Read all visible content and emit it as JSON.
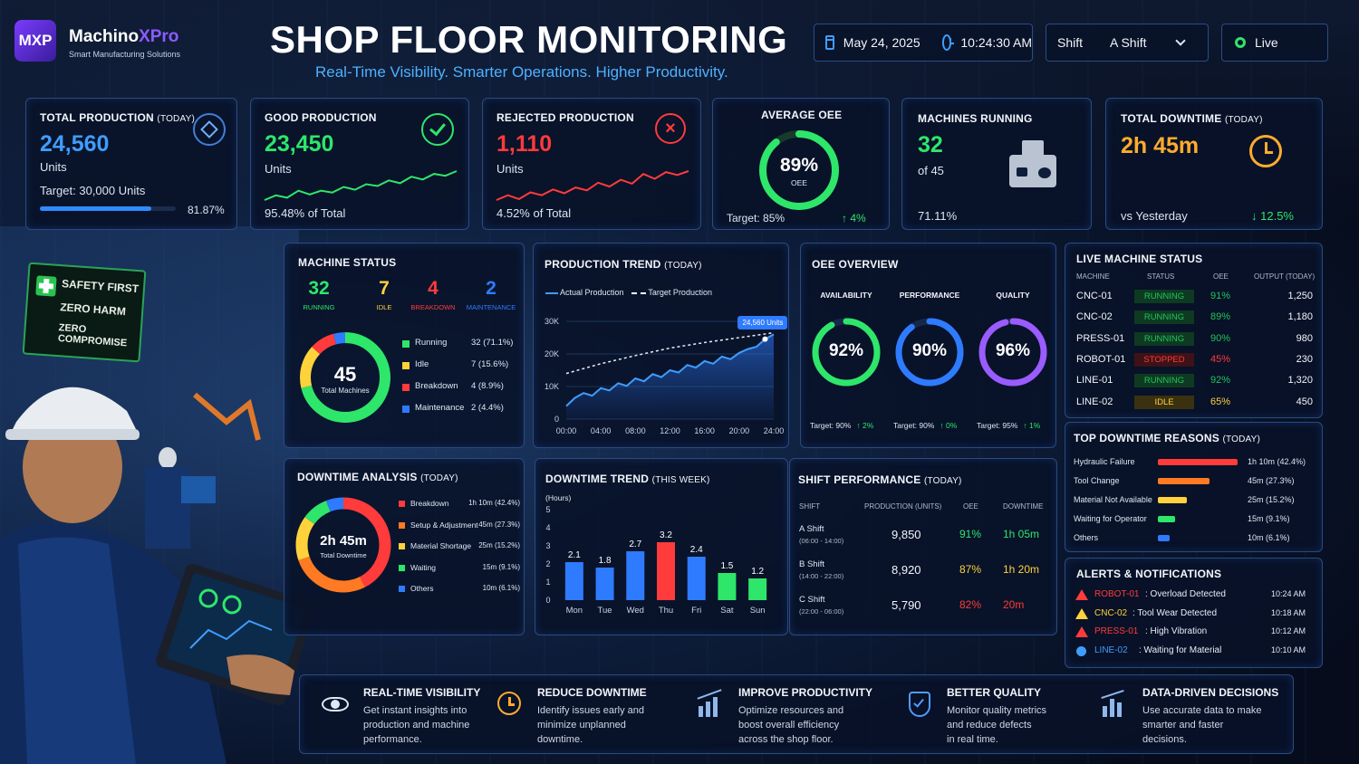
{
  "brand": {
    "logo_text": "MXP",
    "name_part1": "Machino",
    "name_part2": "XPro",
    "tagline": "Smart Manufacturing Solutions"
  },
  "header": {
    "title": "SHOP FLOOR MONITORING",
    "subtitle": "Real-Time Visibility. Smarter Operations. Higher Productivity.",
    "date": "May 24, 2025",
    "time": "10:24:30 AM",
    "shift_label": "Shift",
    "shift_value": "A Shift",
    "live_label": "Live"
  },
  "colors": {
    "accent": "#3f9dff",
    "good": "#2ee66a",
    "bad": "#ff3b3b",
    "idle": "#ffd23c",
    "maintenance": "#2f7bff",
    "quality": "#9a5bff"
  },
  "kpis": {
    "total": {
      "title": "TOTAL PRODUCTION",
      "title_suffix": "(TODAY)",
      "value": "24,560",
      "unit": "Units",
      "target": "Target: 30,000 Units",
      "pct": "81.87%",
      "progress": 0.8187
    },
    "good": {
      "title": "GOOD PRODUCTION",
      "value": "23,450",
      "unit": "Units",
      "footer": "95.48% of Total",
      "spark": [
        3,
        4,
        3.5,
        5,
        4.2,
        5,
        4.6,
        5.8,
        5.2,
        6.4,
        6,
        7.2,
        6.6,
        8,
        7.4,
        8.6,
        8.2,
        9.2
      ]
    },
    "rejected": {
      "title": "REJECTED PRODUCTION",
      "value": "1,110",
      "unit": "Units",
      "footer": "4.52% of Total",
      "spark": [
        3,
        4,
        3.2,
        4.6,
        4,
        5.2,
        4.4,
        5.6,
        5,
        6.6,
        5.8,
        7.2,
        6.4,
        8.4,
        7.4,
        8.8,
        8.2,
        9
      ]
    },
    "oee": {
      "title": "AVERAGE OEE",
      "value": "89%",
      "label": "OEE",
      "target": "Target: 85%",
      "delta": "4%",
      "fraction": 0.89
    },
    "machines": {
      "title": "MACHINES RUNNING",
      "value": "32",
      "of": "of 45",
      "pct": "71.11%"
    },
    "downtime": {
      "title": "TOTAL DOWNTIME",
      "title_suffix": "(TODAY)",
      "value": "2h 45m",
      "vs": "vs Yesterday",
      "delta": "12.5%"
    }
  },
  "machine_status": {
    "title": "MACHINE STATUS",
    "counts": [
      {
        "value": "32",
        "label": "RUNNING"
      },
      {
        "value": "7",
        "label": "IDLE"
      },
      {
        "value": "4",
        "label": "BREAKDOWN"
      },
      {
        "value": "2",
        "label": "MAINTENANCE"
      }
    ],
    "center_value": "45",
    "center_label": "Total Machines",
    "legend": [
      {
        "name": "Running",
        "value": "32 (71.1%)",
        "fraction": 0.711
      },
      {
        "name": "Idle",
        "value": "7 (15.6%)",
        "fraction": 0.156
      },
      {
        "name": "Breakdown",
        "value": "4 (8.9%)",
        "fraction": 0.089
      },
      {
        "name": "Maintenance",
        "value": "2 (4.4%)",
        "fraction": 0.044
      }
    ]
  },
  "production_trend": {
    "title": "PRODUCTION TREND",
    "title_suffix": "(TODAY)",
    "legend_actual": "Actual Production",
    "legend_target": "Target Production",
    "callout": "24,560 Units"
  },
  "chart_data": [
    {
      "type": "line",
      "title": "PRODUCTION TREND (TODAY)",
      "x_ticks": [
        "00:00",
        "04:00",
        "08:00",
        "12:00",
        "16:00",
        "20:00",
        "24:00"
      ],
      "y_ticks": [
        "0",
        "10K",
        "20K",
        "30K"
      ],
      "ylim": [
        0,
        30000
      ],
      "series": [
        {
          "name": "Actual Production",
          "x": [
            0,
            1,
            2,
            3,
            4,
            5,
            6,
            7,
            8,
            9,
            10,
            11,
            12,
            13,
            14,
            15,
            16,
            17,
            18,
            19,
            20,
            21,
            22,
            23,
            24
          ],
          "values": [
            4000,
            6500,
            8000,
            7200,
            9500,
            8800,
            11000,
            10200,
            12500,
            11600,
            13800,
            12900,
            15000,
            14300,
            16600,
            15800,
            17800,
            17000,
            19200,
            18400,
            20300,
            21500,
            22200,
            24560,
            26000
          ]
        },
        {
          "name": "Target Production",
          "x": [
            0,
            4,
            8,
            12,
            16,
            20,
            24
          ],
          "values": [
            14000,
            17000,
            19500,
            21800,
            23500,
            25000,
            26500
          ]
        }
      ]
    },
    {
      "type": "bar",
      "title": "DOWNTIME TREND (THIS WEEK)",
      "ylabel": "(Hours)",
      "categories": [
        "Mon",
        "Tue",
        "Wed",
        "Thu",
        "Fri",
        "Sat",
        "Sun"
      ],
      "values": [
        2.1,
        1.8,
        2.7,
        3.2,
        2.4,
        1.5,
        1.2
      ],
      "y_ticks": [
        "0",
        "1",
        "2",
        "3",
        "4",
        "5"
      ],
      "ylim": [
        0,
        5
      ]
    },
    {
      "type": "pie",
      "title": "DOWNTIME ANALYSIS (TODAY)",
      "categories": [
        "Breakdown",
        "Setup & Adjustment",
        "Material Shortage",
        "Waiting",
        "Others"
      ],
      "values": [
        42.4,
        27.3,
        15.2,
        9.1,
        6.1
      ]
    },
    {
      "type": "bar",
      "title": "TOP DOWNTIME REASONS (TODAY)",
      "categories": [
        "Hydraulic Failure",
        "Tool Change",
        "Material Not Available",
        "Waiting for Operator",
        "Others"
      ],
      "values": [
        42.4,
        27.3,
        15.2,
        9.1,
        6.1
      ]
    }
  ],
  "downtime_trend": {
    "title": "DOWNTIME TREND",
    "title_suffix": "(THIS WEEK)",
    "unit": "(Hours)"
  },
  "downtime_analysis": {
    "title": "DOWNTIME ANALYSIS",
    "title_suffix": "(TODAY)",
    "center_value": "2h 45m",
    "center_label": "Total Downtime",
    "legend": [
      {
        "name": "Breakdown",
        "value": "1h 10m (42.4%)"
      },
      {
        "name": "Setup & Adjustment",
        "value": "45m (27.3%)"
      },
      {
        "name": "Material Shortage",
        "value": "25m (15.2%)"
      },
      {
        "name": "Waiting",
        "value": "15m (9.1%)"
      },
      {
        "name": "Others",
        "value": "10m (6.1%)"
      }
    ]
  },
  "oee_overview": {
    "title": "OEE OVERVIEW",
    "gauges": [
      {
        "label": "AVAILABILITY",
        "value": "92%",
        "fraction": 0.92,
        "target": "Target: 90%",
        "delta": "2%"
      },
      {
        "label": "PERFORMANCE",
        "value": "90%",
        "fraction": 0.9,
        "target": "Target: 90%",
        "delta": "0%"
      },
      {
        "label": "QUALITY",
        "value": "96%",
        "fraction": 0.96,
        "target": "Target: 95%",
        "delta": "1%"
      }
    ]
  },
  "live_status": {
    "title": "LIVE MACHINE STATUS",
    "headers": [
      "MACHINE",
      "STATUS",
      "OEE",
      "OUTPUT (TODAY)"
    ],
    "rows": [
      {
        "machine": "CNC-01",
        "status": "RUNNING",
        "oee": "91%",
        "output": "1,250"
      },
      {
        "machine": "CNC-02",
        "status": "RUNNING",
        "oee": "89%",
        "output": "1,180"
      },
      {
        "machine": "PRESS-01",
        "status": "RUNNING",
        "oee": "90%",
        "output": "980"
      },
      {
        "machine": "ROBOT-01",
        "status": "STOPPED",
        "oee": "45%",
        "output": "230"
      },
      {
        "machine": "LINE-01",
        "status": "RUNNING",
        "oee": "92%",
        "output": "1,320"
      },
      {
        "machine": "LINE-02",
        "status": "IDLE",
        "oee": "65%",
        "output": "450"
      }
    ]
  },
  "downtime_reasons": {
    "title": "TOP DOWNTIME REASONS",
    "title_suffix": "(TODAY)",
    "rows": [
      {
        "name": "Hydraulic Failure",
        "value": "1h 10m (42.4%)"
      },
      {
        "name": "Tool Change",
        "value": "45m (27.3%)"
      },
      {
        "name": "Material Not Available",
        "value": "25m (15.2%)"
      },
      {
        "name": "Waiting for Operator",
        "value": "15m (9.1%)"
      },
      {
        "name": "Others",
        "value": "10m (6.1%)"
      }
    ]
  },
  "shift_performance": {
    "title": "SHIFT PERFORMANCE",
    "title_suffix": "(TODAY)",
    "headers": [
      "SHIFT",
      "PRODUCTION (UNITS)",
      "OEE",
      "DOWNTIME"
    ],
    "rows": [
      {
        "name": "A Shift",
        "hours": "(06:00 - 14:00)",
        "production": "9,850",
        "oee": "91%",
        "downtime": "1h 05m"
      },
      {
        "name": "B Shift",
        "hours": "(14:00 - 22:00)",
        "production": "8,920",
        "oee": "87%",
        "downtime": "1h 20m"
      },
      {
        "name": "C Shift",
        "hours": "(22:00 - 06:00)",
        "production": "5,790",
        "oee": "82%",
        "downtime": "20m"
      }
    ]
  },
  "alerts": {
    "title": "ALERTS & NOTIFICATIONS",
    "rows": [
      {
        "icon": "warning-triangle-icon",
        "machine": "ROBOT-01",
        "message": ": Overload Detected",
        "time": "10:24 AM"
      },
      {
        "icon": "warning-triangle-icon",
        "machine": "CNC-02",
        "message": ": Tool Wear Detected",
        "time": "10:18 AM"
      },
      {
        "icon": "warning-triangle-icon",
        "machine": "PRESS-01",
        "message": ": High Vibration",
        "time": "10:12 AM"
      },
      {
        "icon": "info-circle-icon",
        "machine": "LINE-02",
        "message": ": Waiting for Material",
        "time": "10:10 AM"
      }
    ]
  },
  "safety_sign": {
    "line1": "SAFETY FIRST",
    "line2": "ZERO HARM",
    "line3": "ZERO COMPROMISE"
  },
  "features": [
    {
      "icon": "eye-icon",
      "title": "REAL-TIME VISIBILITY",
      "lines": [
        "Get instant insights into",
        "production and machine",
        "performance."
      ]
    },
    {
      "icon": "clock-gear-icon",
      "title": "REDUCE DOWNTIME",
      "lines": [
        "Identify issues early and",
        "minimize unplanned",
        "downtime."
      ]
    },
    {
      "icon": "growth-chart-icon",
      "title": "IMPROVE PRODUCTIVITY",
      "lines": [
        "Optimize resources and",
        "boost overall efficiency",
        "across the shop floor."
      ]
    },
    {
      "icon": "shield-check-icon",
      "title": "BETTER QUALITY",
      "lines": [
        "Monitor quality metrics",
        "and reduce defects",
        "in real time."
      ]
    },
    {
      "icon": "bar-chart-icon",
      "title": "DATA-DRIVEN DECISIONS",
      "lines": [
        "Use accurate data to make",
        "smarter and faster",
        "decisions."
      ]
    }
  ]
}
